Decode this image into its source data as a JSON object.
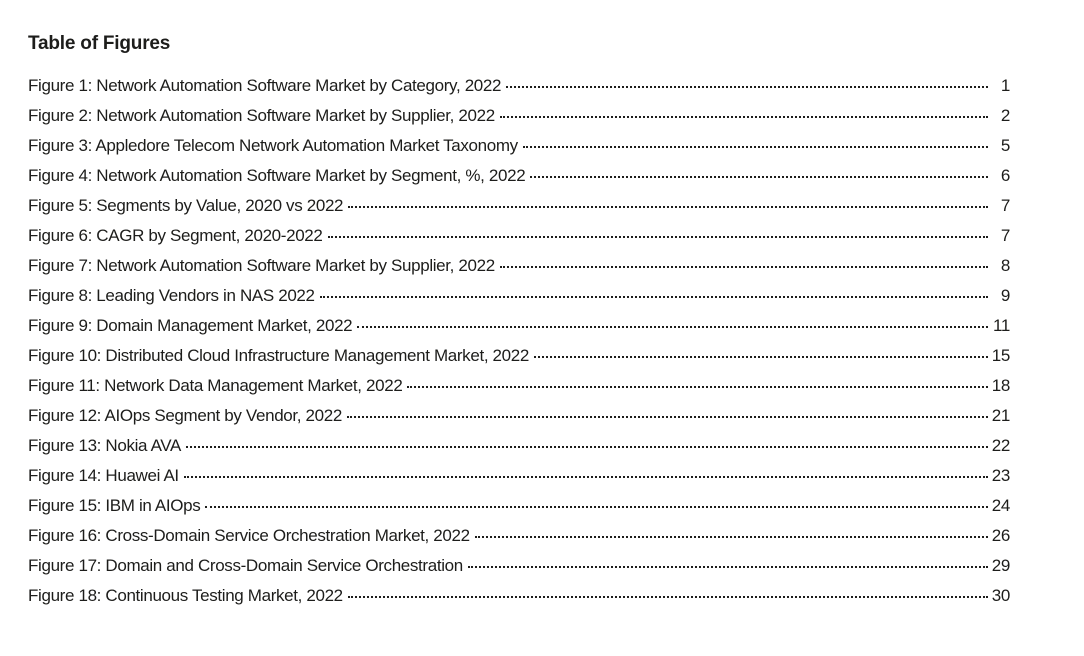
{
  "document": {
    "title": "Table of Figures",
    "text_color": "#1d1d1b",
    "entries": [
      {
        "label": "Figure 1: Network Automation Software Market by Category, 2022",
        "page": "1"
      },
      {
        "label": "Figure 2: Network Automation Software Market by Supplier, 2022",
        "page": "2"
      },
      {
        "label": "Figure 3: Appledore Telecom Network Automation Market Taxonomy",
        "page": "5"
      },
      {
        "label": "Figure 4: Network Automation Software Market by Segment, %, 2022",
        "page": "6"
      },
      {
        "label": "Figure 5: Segments by Value, 2020 vs 2022",
        "page": "7"
      },
      {
        "label": "Figure 6: CAGR by Segment, 2020-2022",
        "page": "7"
      },
      {
        "label": "Figure 7: Network Automation Software Market by Supplier, 2022",
        "page": "8"
      },
      {
        "label": "Figure 8: Leading Vendors in NAS 2022",
        "page": "9"
      },
      {
        "label": "Figure 9: Domain Management Market, 2022",
        "page": "11"
      },
      {
        "label": "Figure 10: Distributed Cloud Infrastructure Management Market, 2022",
        "page": "15"
      },
      {
        "label": "Figure 11: Network Data Management Market, 2022",
        "page": "18"
      },
      {
        "label": "Figure 12: AIOps Segment by Vendor, 2022",
        "page": "21"
      },
      {
        "label": "Figure 13: Nokia AVA",
        "page": "22"
      },
      {
        "label": "Figure 14: Huawei AI",
        "page": "23"
      },
      {
        "label": "Figure 15: IBM in AIOps",
        "page": "24"
      },
      {
        "label": "Figure 16: Cross-Domain Service Orchestration Market, 2022",
        "page": "26"
      },
      {
        "label": "Figure 17: Domain and Cross-Domain Service Orchestration",
        "page": "29"
      },
      {
        "label": "Figure 18: Continuous Testing Market, 2022",
        "page": "30"
      }
    ]
  }
}
